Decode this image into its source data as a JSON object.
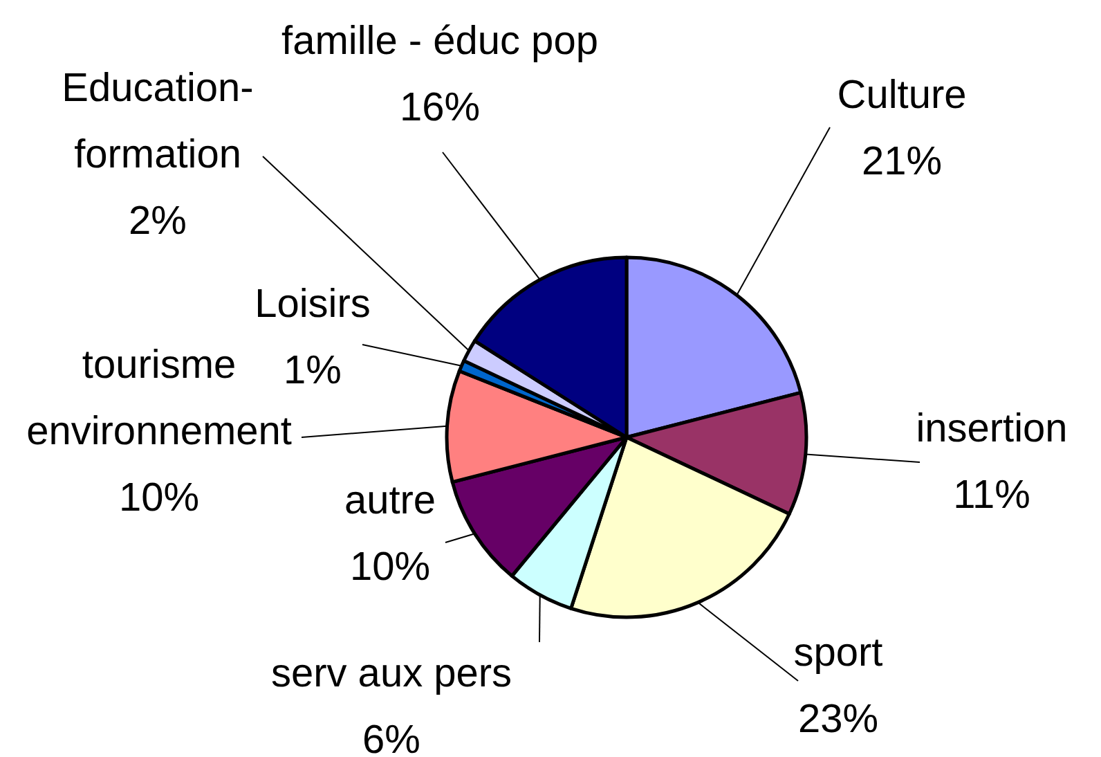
{
  "chart_data": {
    "type": "pie",
    "categories": [
      "Culture",
      "insertion",
      "sport",
      "serv aux pers",
      "autre",
      "tourisme\nenvironnement",
      "Loisirs",
      "Education-\nformation",
      "famille - éduc pop"
    ],
    "values": [
      21,
      11,
      23,
      6,
      10,
      10,
      1,
      2,
      16
    ],
    "colors": [
      "#9999ff",
      "#993366",
      "#ffffcc",
      "#ccffff",
      "#660066",
      "#ff8080",
      "#0066cc",
      "#ccccff",
      "#000080"
    ],
    "value_labels": [
      "21%",
      "11%",
      "23%",
      "6%",
      "10%",
      "10%",
      "1%",
      "2%",
      "16%"
    ]
  }
}
